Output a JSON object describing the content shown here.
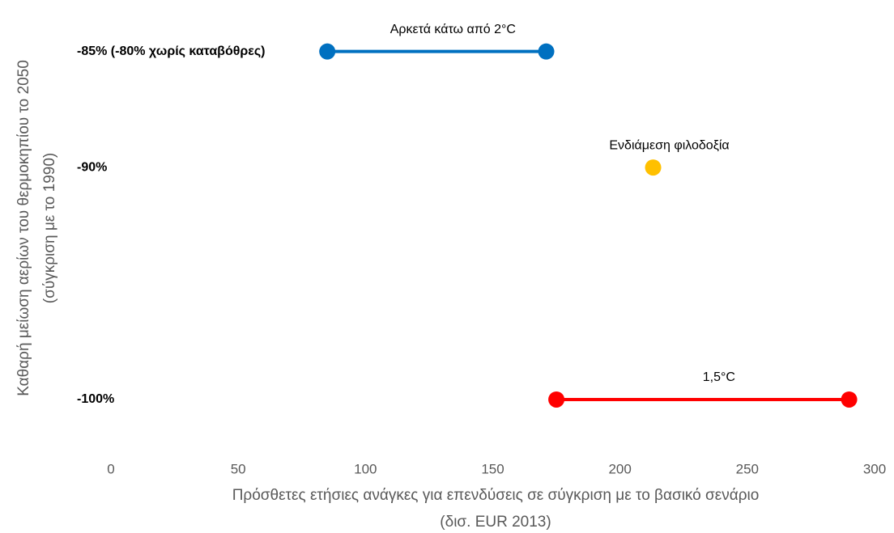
{
  "chart_data": {
    "type": "scatter",
    "xlabel": [
      "Πρόσθετες ετήσιες ανάγκες για επενδύσεις σε σύγκριση με το βασικό σενάριο",
      "(δισ. EUR 2013)"
    ],
    "ylabel": [
      "Καθαρή μείωση αερίων του θερμοκηπίου το 2050",
      "(σύγκριση με το 1990)"
    ],
    "xlim": [
      0,
      300
    ],
    "xticks": [
      0,
      50,
      100,
      150,
      200,
      250,
      300
    ],
    "ylim": [
      -101.5,
      -84
    ],
    "yticks": [
      {
        "value": -85,
        "label": "-85% (-80% χωρίς καταβόθρες)"
      },
      {
        "value": -90,
        "label": "-90%"
      },
      {
        "value": -100,
        "label": "-100%"
      }
    ],
    "grid": false,
    "series": [
      {
        "name": "Αρκετά κάτω από 2°C",
        "color": "#0070c0",
        "x": [
          85,
          171
        ],
        "values": [
          -85,
          -85
        ]
      },
      {
        "name": "Ενδιάμεση φιλοδοξία",
        "color": "#ffc000",
        "x": [
          213
        ],
        "values": [
          -90
        ]
      },
      {
        "name": "1,5°C",
        "color": "#ff0000",
        "x": [
          175,
          290
        ],
        "values": [
          -100,
          -100
        ]
      }
    ]
  }
}
